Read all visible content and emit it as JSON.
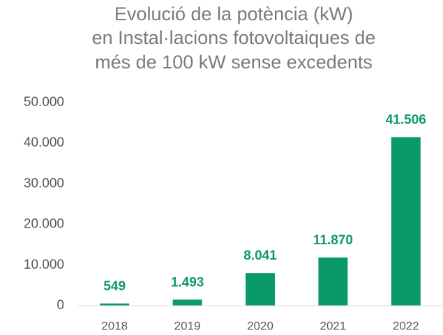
{
  "chart_data": {
    "type": "bar",
    "title": [
      "Evolució de la potència (kW)",
      "en Instal·lacions fotovoltaiques de",
      "més de 100 kW sense excedents"
    ],
    "categories": [
      "2018",
      "2019",
      "2020",
      "2021",
      "2022"
    ],
    "values": [
      549,
      1493,
      8041,
      11870,
      41506
    ],
    "value_labels": [
      "549",
      "1.493",
      "8.041",
      "11.870",
      "41.506"
    ],
    "color": "#0a9a6a",
    "ylim": [
      0,
      50000
    ],
    "yticks": [
      0,
      {
        "value": 10000,
        "label": "10.000"
      },
      {
        "value": 20000,
        "label": "20.000"
      },
      {
        "value": 30000,
        "label": "30.000"
      },
      {
        "value": 40000,
        "label": "40.000"
      },
      {
        "value": 50000,
        "label": "50.000"
      }
    ],
    "grid": false
  }
}
